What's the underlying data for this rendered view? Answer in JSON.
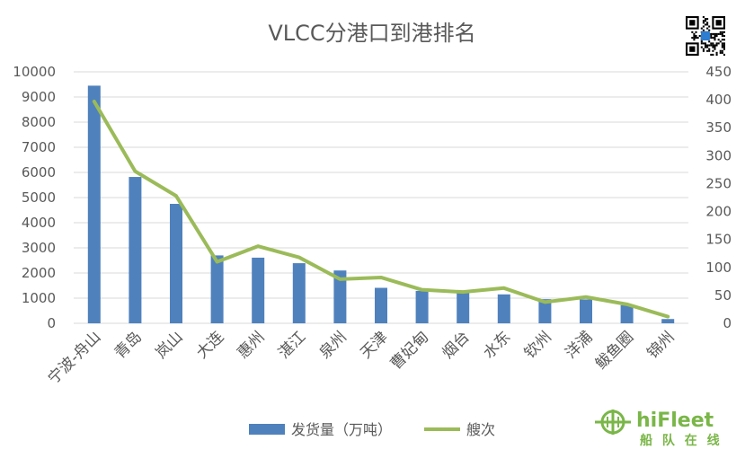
{
  "chart_data": {
    "type": "bar",
    "title": "VLCC分港口到港排名",
    "categories": [
      "宁波-舟山",
      "青岛",
      "岚山",
      "大连",
      "惠州",
      "湛江",
      "泉州",
      "天津",
      "曹妃甸",
      "烟台",
      "水东",
      "钦州",
      "洋浦",
      "鲅鱼圈",
      "锦州"
    ],
    "series": [
      {
        "name": "发货量（万吨）",
        "type": "bar",
        "axis": "left",
        "values": [
          9450,
          5820,
          4750,
          2700,
          2610,
          2390,
          2100,
          1410,
          1290,
          1230,
          1150,
          960,
          950,
          720,
          170
        ]
      },
      {
        "name": "艘次",
        "type": "line",
        "axis": "right",
        "values": [
          397,
          272,
          228,
          110,
          138,
          118,
          79,
          82,
          60,
          56,
          63,
          38,
          47,
          34,
          12
        ]
      }
    ],
    "y_left": {
      "ylim": [
        0,
        10000
      ],
      "ticks": [
        "0",
        "1000",
        "2000",
        "3000",
        "4000",
        "5000",
        "6000",
        "7000",
        "8000",
        "9000",
        "10000"
      ]
    },
    "y_right": {
      "ylim": [
        0,
        450
      ],
      "ticks": [
        "0",
        "50",
        "100",
        "150",
        "200",
        "250",
        "300",
        "350",
        "400",
        "450"
      ]
    },
    "grid": true,
    "legend_position": "bottom",
    "colors": {
      "bar": "#4f81bd",
      "line": "#9bbb59",
      "grid": "#d9d9d9",
      "text": "#595959",
      "brand": "#7ab648"
    }
  },
  "brand": {
    "name": "hiFleet",
    "subtitle": "船 队 在 线",
    "logo_icon": "hifleet-logo-icon",
    "qr_icon": "qr-code-icon"
  }
}
